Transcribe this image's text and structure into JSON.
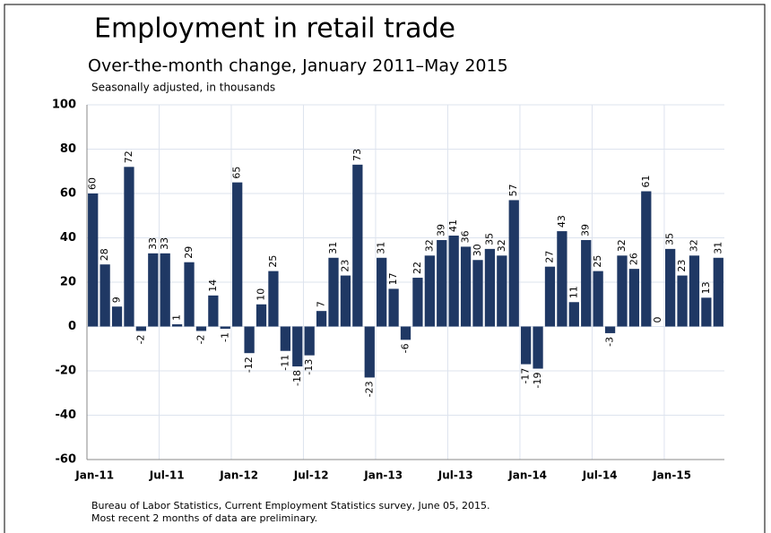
{
  "chart_data": {
    "type": "bar",
    "title": "Employment in retail trade",
    "subtitle": "Over-the-month change, January 2011–May 2015",
    "note": "Seasonally adjusted, in thousands",
    "source": [
      "Bureau of Labor Statistics, Current Employment Statistics survey, June 05, 2015.",
      "Most recent 2 months of data are preliminary."
    ],
    "categories": [
      "Jan-11",
      null,
      null,
      null,
      null,
      null,
      "Jul-11",
      null,
      null,
      null,
      null,
      null,
      "Jan-12",
      null,
      null,
      null,
      null,
      null,
      "Jul-12",
      null,
      null,
      null,
      null,
      null,
      "Jan-13",
      null,
      null,
      null,
      null,
      null,
      "Jul-13",
      null,
      null,
      null,
      null,
      null,
      "Jan-14",
      null,
      null,
      null,
      null,
      null,
      "Jul-14",
      null,
      null,
      null,
      null,
      null,
      "Jan-15",
      null,
      null,
      null,
      null
    ],
    "values": [
      60,
      28,
      9,
      72,
      -2,
      33,
      33,
      1,
      29,
      -2,
      14,
      -1,
      65,
      -12,
      10,
      25,
      -11,
      -18,
      -13,
      7,
      31,
      23,
      73,
      -23,
      31,
      17,
      -6,
      22,
      32,
      39,
      41,
      36,
      30,
      35,
      32,
      57,
      -17,
      -19,
      27,
      43,
      11,
      39,
      25,
      -3,
      32,
      26,
      61,
      0,
      35,
      23,
      32,
      13,
      31
    ],
    "color": "#1f3864",
    "ylim": [
      -60,
      100
    ],
    "yticks": [
      -60,
      -40,
      -20,
      0,
      20,
      40,
      60,
      80,
      100
    ],
    "grid": true
  }
}
